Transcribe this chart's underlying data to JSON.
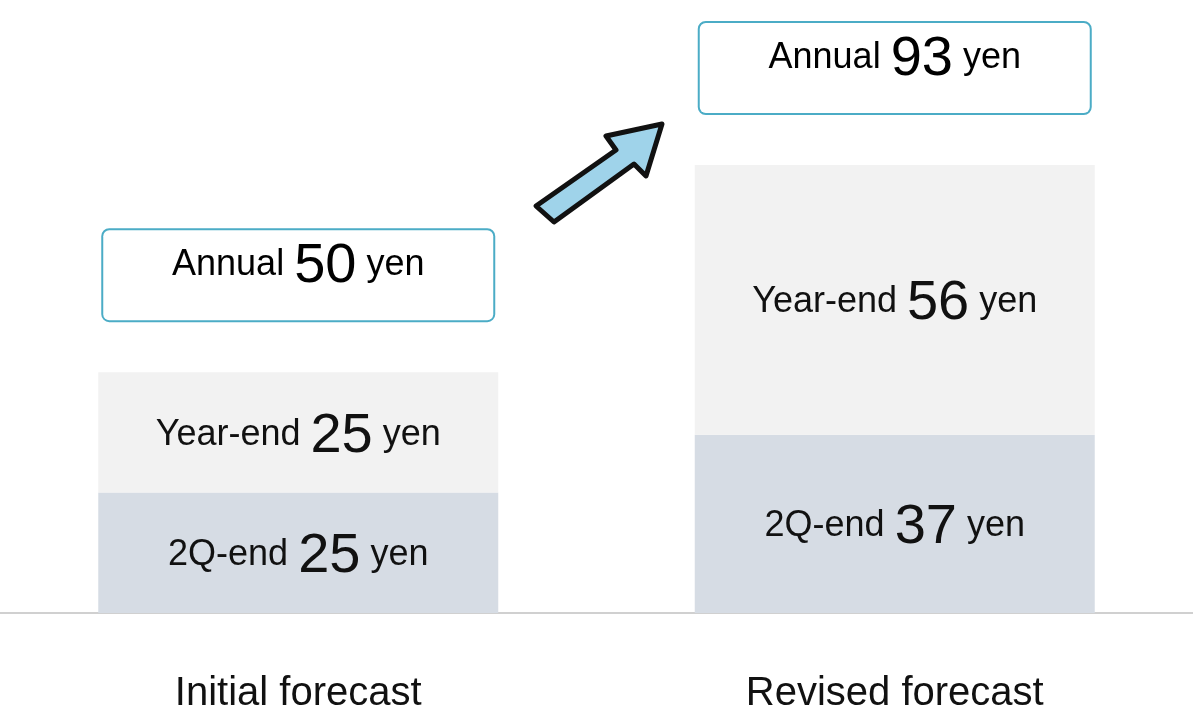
{
  "chart_data": {
    "type": "bar",
    "stacked": true,
    "categories": [
      "Initial forecast",
      "Revised forecast"
    ],
    "series": [
      {
        "name": "2Q-end",
        "color": "#d6dce4",
        "values": [
          25,
          37
        ],
        "value_labels": [
          "25 yen",
          "37 yen"
        ]
      },
      {
        "name": "Year-end",
        "color": "#f2f2f2",
        "values": [
          25,
          56
        ],
        "value_labels": [
          "25 yen",
          "56 yen"
        ]
      }
    ],
    "totals": [
      "Annual 50 yen",
      "Annual 93 yen"
    ]
  }
}
